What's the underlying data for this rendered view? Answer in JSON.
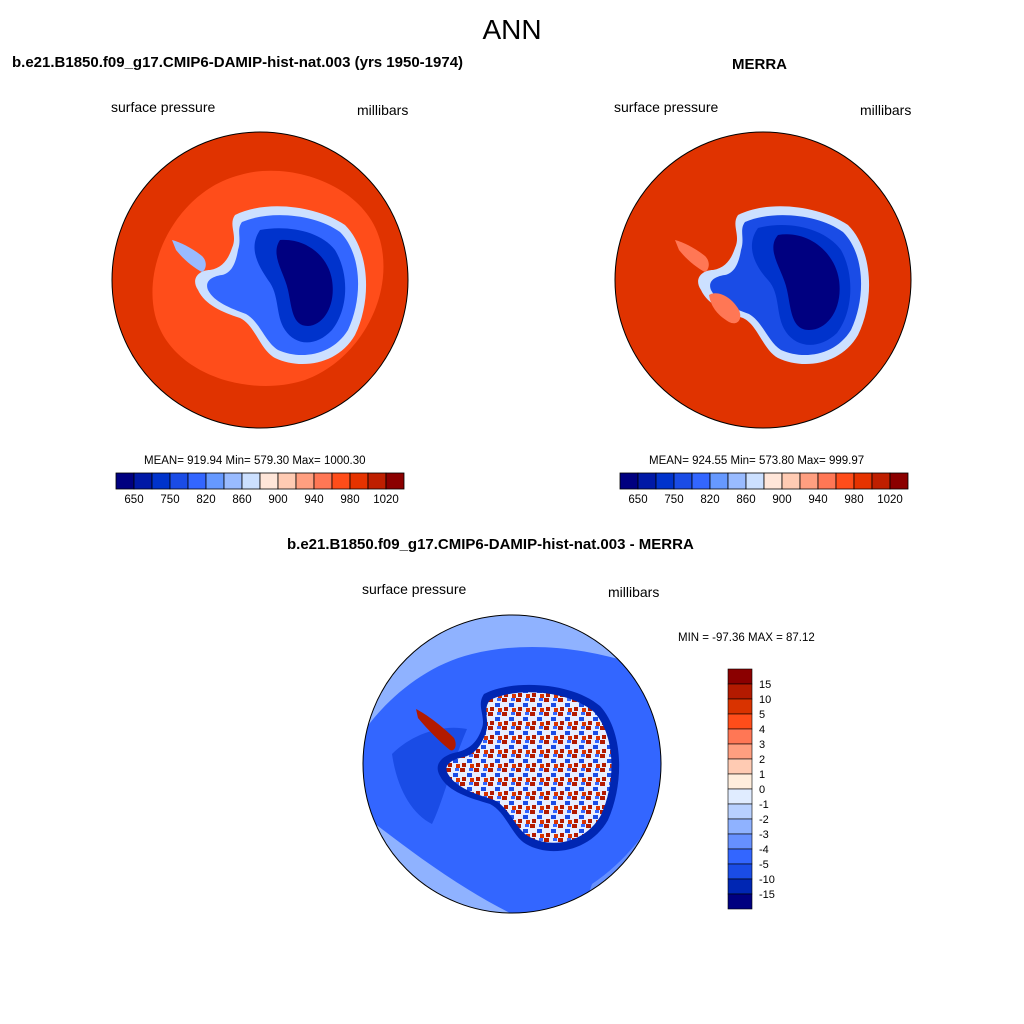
{
  "main_title": "ANN",
  "panels": [
    {
      "title": "b.e21.B1850.f09_g17.CMIP6-DAMIP-hist-nat.003 (yrs 1950-1974)",
      "left_label": "surface pressure",
      "right_label": "millibars",
      "stats": "MEAN= 919.94  Min= 579.30  Max= 1000.30"
    },
    {
      "title": "MERRA",
      "left_label": "surface pressure",
      "right_label": "millibars",
      "stats": "MEAN= 924.55  Min= 573.80  Max= 999.97"
    },
    {
      "title": "b.e21.B1850.f09_g17.CMIP6-DAMIP-hist-nat.003 - MERRA",
      "left_label": "surface pressure",
      "right_label": "millibars",
      "stats": "MIN = -97.36 MAX =  87.12"
    }
  ],
  "colorbar_abs": {
    "colors": [
      "#000080",
      "#0019a6",
      "#0033cc",
      "#1a4ce6",
      "#3366ff",
      "#6699ff",
      "#99bbff",
      "#cce0ff",
      "#ffe6d9",
      "#ffcbb3",
      "#ff9f80",
      "#ff7755",
      "#ff4d1a",
      "#e63300",
      "#bf1f00",
      "#8b0000"
    ],
    "labels": [
      "650",
      "750",
      "820",
      "860",
      "900",
      "940",
      "980",
      "1020"
    ]
  },
  "colorbar_diff": {
    "colors": [
      "#8b0000",
      "#b31a00",
      "#d93300",
      "#ff4d1a",
      "#ff7755",
      "#ff9f80",
      "#ffcbb3",
      "#ffeedd",
      "#e0ecff",
      "#b8d0ff",
      "#8fb2ff",
      "#6690ff",
      "#3366ff",
      "#1a4ce6",
      "#0026b3",
      "#000080"
    ],
    "labels": [
      "15",
      "10",
      "5",
      "4",
      "3",
      "2",
      "1",
      "0",
      "-1",
      "-2",
      "-3",
      "-4",
      "-5",
      "-10",
      "-15"
    ]
  }
}
